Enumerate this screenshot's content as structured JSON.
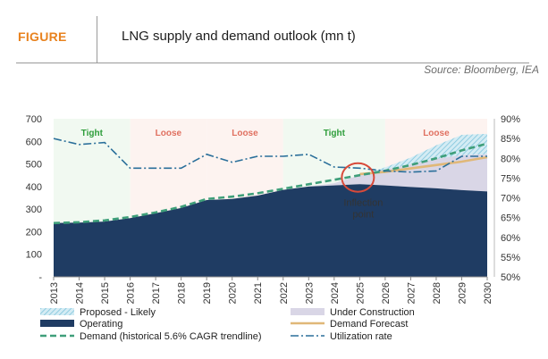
{
  "figure_label": "FIGURE",
  "title": "LNG supply and demand outlook (mn t)",
  "source": "Source: Bloomberg, IEA",
  "colors": {
    "figure_label": "#e8821e",
    "operating": "#1f3c63",
    "under_construction": "#d9d6e6",
    "proposed_likely": "#9fd6e8",
    "demand": "#3f9f7a",
    "demand_forecast": "#e0b878",
    "utilization": "#2a6f9a",
    "tight": "#2d9d3a",
    "loose": "#e07060",
    "inflection": "#d84a3a"
  },
  "chart_data": {
    "type": "area",
    "title": "LNG supply and demand outlook (mn t)",
    "x": [
      "2013",
      "2014",
      "2015",
      "2016",
      "2017",
      "2018",
      "2019",
      "2020",
      "2021",
      "2022",
      "2023",
      "2024",
      "2025",
      "2026",
      "2027",
      "2028",
      "2029",
      "2030"
    ],
    "y_left": {
      "ticks": [
        "-",
        "100",
        "200",
        "300",
        "400",
        "500",
        "600",
        "700"
      ],
      "ylim": [
        0,
        700
      ]
    },
    "y_right": {
      "ticks": [
        "50%",
        "55%",
        "60%",
        "65%",
        "70%",
        "75%",
        "80%",
        "85%",
        "90%"
      ],
      "ylim": [
        50,
        90
      ]
    },
    "series": [
      {
        "name": "Operating",
        "kind": "area",
        "axis": "left",
        "values": [
          238,
          240,
          245,
          260,
          282,
          305,
          340,
          345,
          360,
          385,
          400,
          405,
          410,
          405,
          398,
          392,
          384,
          378
        ]
      },
      {
        "name": "Under Construction",
        "kind": "area-stack",
        "axis": "left",
        "values": [
          0,
          0,
          0,
          0,
          0,
          0,
          0,
          0,
          0,
          0,
          0,
          10,
          40,
          70,
          100,
          130,
          155,
          165
        ]
      },
      {
        "name": "Proposed - Likely",
        "kind": "area-stack",
        "axis": "left",
        "values": [
          0,
          0,
          0,
          0,
          0,
          0,
          0,
          0,
          0,
          0,
          0,
          0,
          0,
          10,
          30,
          60,
          90,
          90
        ]
      },
      {
        "name": "Demand (historical 5.6% CAGR trendline)",
        "kind": "line-dashed",
        "axis": "left",
        "values": [
          238,
          242,
          250,
          265,
          285,
          310,
          345,
          355,
          370,
          390,
          410,
          430,
          450,
          470,
          495,
          525,
          560,
          590
        ]
      },
      {
        "name": "Demand Forecast",
        "kind": "line",
        "axis": "left",
        "values": [
          null,
          null,
          null,
          null,
          null,
          null,
          null,
          null,
          null,
          null,
          null,
          null,
          455,
          465,
          480,
          495,
          510,
          530
        ]
      },
      {
        "name": "Utilization rate",
        "kind": "line-dashdot",
        "axis": "right",
        "values": [
          85,
          83.5,
          84,
          77.5,
          77.5,
          77.5,
          81,
          79,
          80.5,
          80.5,
          81,
          77.8,
          77.5,
          76.8,
          76.5,
          76.8,
          80.5,
          80.5
        ]
      }
    ],
    "regimes": [
      {
        "label": "Tight",
        "start": "2013",
        "end": "2016",
        "kind": "tight"
      },
      {
        "label": "Loose",
        "start": "2016",
        "end": "2019",
        "kind": "loose"
      },
      {
        "label": "Loose",
        "start": "2019",
        "end": "2022",
        "kind": "loose"
      },
      {
        "label": "Tight",
        "start": "2022",
        "end": "2026",
        "kind": "tight"
      },
      {
        "label": "Loose",
        "start": "2026",
        "end": "2030",
        "kind": "loose"
      }
    ],
    "annotation": {
      "text_line1": "Inflection",
      "text_line2": "point",
      "x": "2025",
      "y": 440
    },
    "legend": [
      {
        "label": "Proposed - Likely",
        "swatch": "hatch"
      },
      {
        "label": "Under Construction",
        "swatch": "fill-light"
      },
      {
        "label": "Operating",
        "swatch": "fill-dark"
      },
      {
        "label": "Demand Forecast",
        "swatch": "line-tan"
      },
      {
        "label": "Demand (historical 5.6% CAGR trendline)",
        "swatch": "line-dashed"
      },
      {
        "label": "Utilization rate",
        "swatch": "line-dashdot"
      }
    ],
    "legend_position": "bottom",
    "grid": false
  }
}
